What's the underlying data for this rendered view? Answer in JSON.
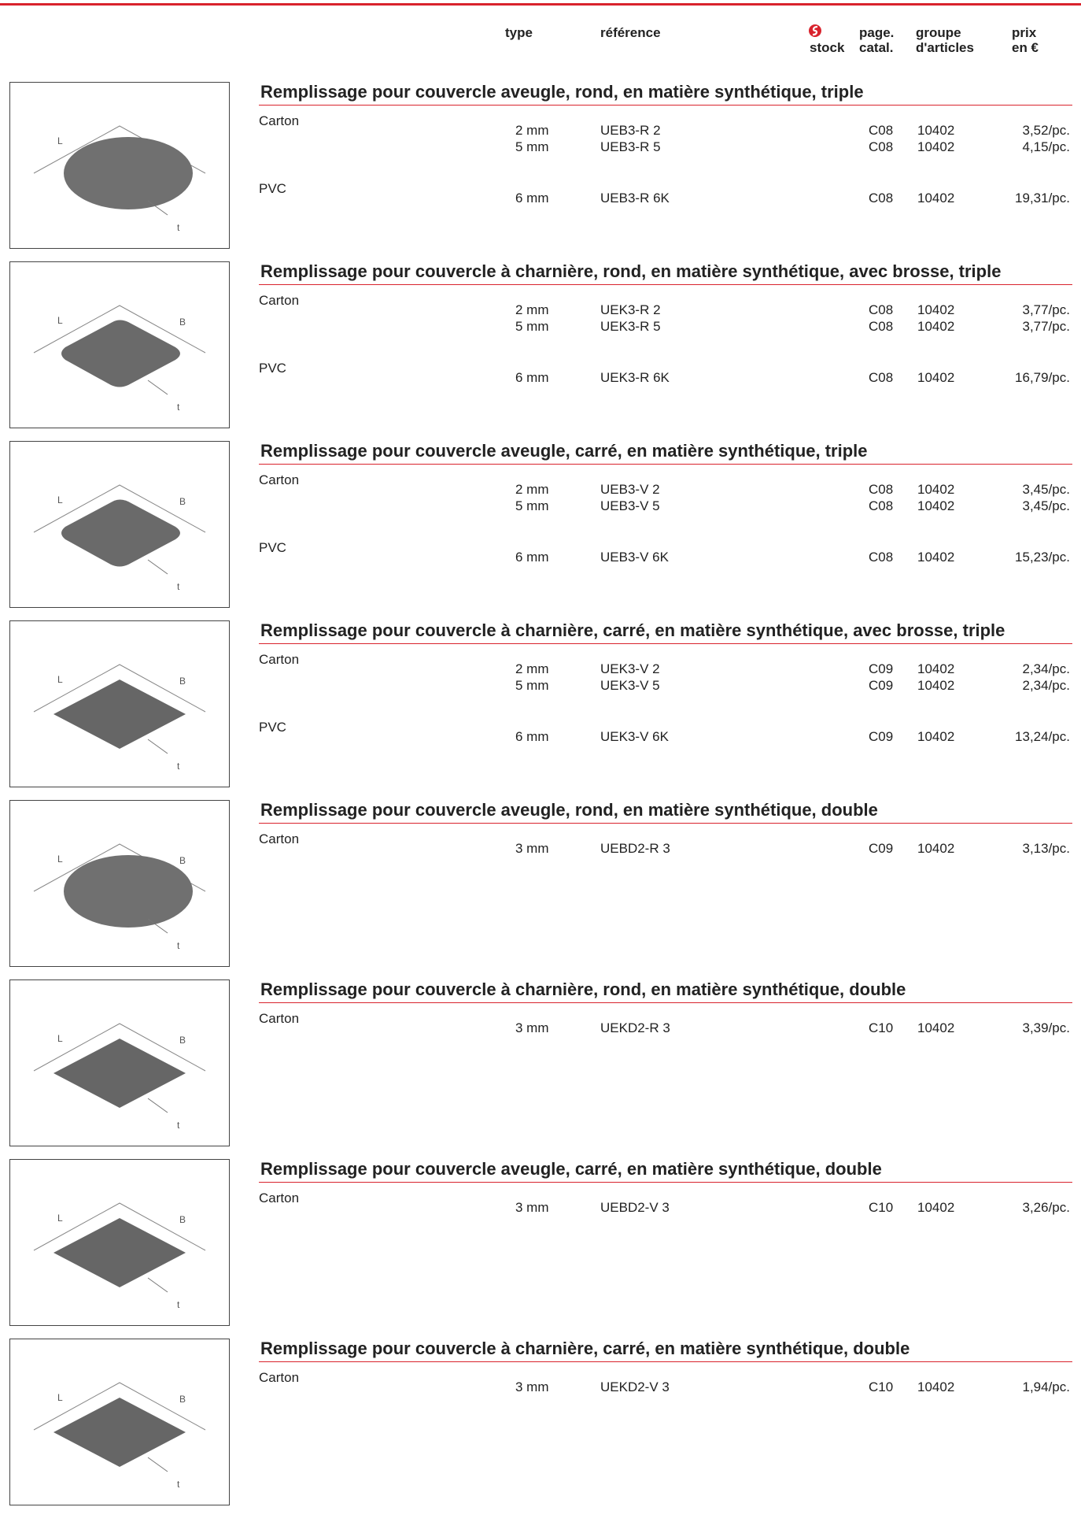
{
  "header": {
    "columns": {
      "type": "type",
      "reference": "référence",
      "stock": "stock",
      "page": "page.",
      "page2": "catal.",
      "group": "groupe",
      "group2": "d'articles",
      "price": "prix",
      "price2": "en €"
    }
  },
  "sections": [
    {
      "title": "Remplissage pour couvercle aveugle, rond, en matière synthétique, triple",
      "figure_labels": [
        "L",
        "t"
      ],
      "groups": [
        {
          "material": "Carton",
          "items": [
            {
              "type": "2 mm",
              "reference": "UEB3-R 2",
              "page": "C08",
              "group": "10402",
              "price": "3,52/pc."
            },
            {
              "type": "5 mm",
              "reference": "UEB3-R 5",
              "page": "C08",
              "group": "10402",
              "price": "4,15/pc."
            }
          ]
        },
        {
          "material": "PVC",
          "items": [
            {
              "type": "6 mm",
              "reference": "UEB3-R 6K",
              "page": "C08",
              "group": "10402",
              "price": "19,31/pc."
            }
          ]
        }
      ]
    },
    {
      "title": "Remplissage pour couvercle à charnière, rond, en matière synthétique, avec brosse, triple",
      "figure_labels": [
        "L",
        "B",
        "t"
      ],
      "groups": [
        {
          "material": "Carton",
          "items": [
            {
              "type": "2 mm",
              "reference": "UEK3-R 2",
              "page": "C08",
              "group": "10402",
              "price": "3,77/pc."
            },
            {
              "type": "5 mm",
              "reference": "UEK3-R 5",
              "page": "C08",
              "group": "10402",
              "price": "3,77/pc."
            }
          ]
        },
        {
          "material": "PVC",
          "items": [
            {
              "type": "6 mm",
              "reference": "UEK3-R 6K",
              "page": "C08",
              "group": "10402",
              "price": "16,79/pc."
            }
          ]
        }
      ]
    },
    {
      "title": "Remplissage pour couvercle aveugle, carré, en matière synthétique, triple",
      "figure_labels": [
        "L",
        "B",
        "t"
      ],
      "groups": [
        {
          "material": "Carton",
          "items": [
            {
              "type": "2 mm",
              "reference": "UEB3-V 2",
              "page": "C08",
              "group": "10402",
              "price": "3,45/pc."
            },
            {
              "type": "5 mm",
              "reference": "UEB3-V 5",
              "page": "C08",
              "group": "10402",
              "price": "3,45/pc."
            }
          ]
        },
        {
          "material": "PVC",
          "items": [
            {
              "type": "6 mm",
              "reference": "UEB3-V 6K",
              "page": "C08",
              "group": "10402",
              "price": "15,23/pc."
            }
          ]
        }
      ]
    },
    {
      "title": "Remplissage pour couvercle à charnière, carré, en matière synthétique, avec brosse, triple",
      "figure_labels": [
        "L",
        "B",
        "t"
      ],
      "groups": [
        {
          "material": "Carton",
          "items": [
            {
              "type": "2 mm",
              "reference": "UEK3-V 2",
              "page": "C09",
              "group": "10402",
              "price": "2,34/pc."
            },
            {
              "type": "5 mm",
              "reference": "UEK3-V 5",
              "page": "C09",
              "group": "10402",
              "price": "2,34/pc."
            }
          ]
        },
        {
          "material": "PVC",
          "items": [
            {
              "type": "6 mm",
              "reference": "UEK3-V 6K",
              "page": "C09",
              "group": "10402",
              "price": "13,24/pc."
            }
          ]
        }
      ]
    },
    {
      "title": "Remplissage pour couvercle aveugle, rond, en matière synthétique, double",
      "figure_labels": [
        "L",
        "B",
        "t"
      ],
      "groups": [
        {
          "material": "Carton",
          "items": [
            {
              "type": "3 mm",
              "reference": "UEBD2-R 3",
              "page": "C09",
              "group": "10402",
              "price": "3,13/pc."
            }
          ]
        }
      ]
    },
    {
      "title": "Remplissage pour couvercle à charnière, rond, en matière synthétique, double",
      "figure_labels": [
        "L",
        "B",
        "t"
      ],
      "groups": [
        {
          "material": "Carton",
          "items": [
            {
              "type": "3 mm",
              "reference": "UEKD2-R 3",
              "page": "C10",
              "group": "10402",
              "price": "3,39/pc."
            }
          ]
        }
      ]
    },
    {
      "title": "Remplissage pour couvercle aveugle, carré, en matière synthétique, double",
      "figure_labels": [
        "L",
        "B",
        "t"
      ],
      "groups": [
        {
          "material": "Carton",
          "items": [
            {
              "type": "3 mm",
              "reference": "UEBD2-V 3",
              "page": "C10",
              "group": "10402",
              "price": "3,26/pc."
            }
          ]
        }
      ]
    },
    {
      "title": "Remplissage pour couvercle à charnière, carré, en matière synthétique, double",
      "figure_labels": [
        "L",
        "B",
        "t"
      ],
      "groups": [
        {
          "material": "Carton",
          "items": [
            {
              "type": "3 mm",
              "reference": "UEKD2-V 3",
              "page": "C10",
              "group": "10402",
              "price": "1,94/pc."
            }
          ]
        }
      ]
    }
  ]
}
